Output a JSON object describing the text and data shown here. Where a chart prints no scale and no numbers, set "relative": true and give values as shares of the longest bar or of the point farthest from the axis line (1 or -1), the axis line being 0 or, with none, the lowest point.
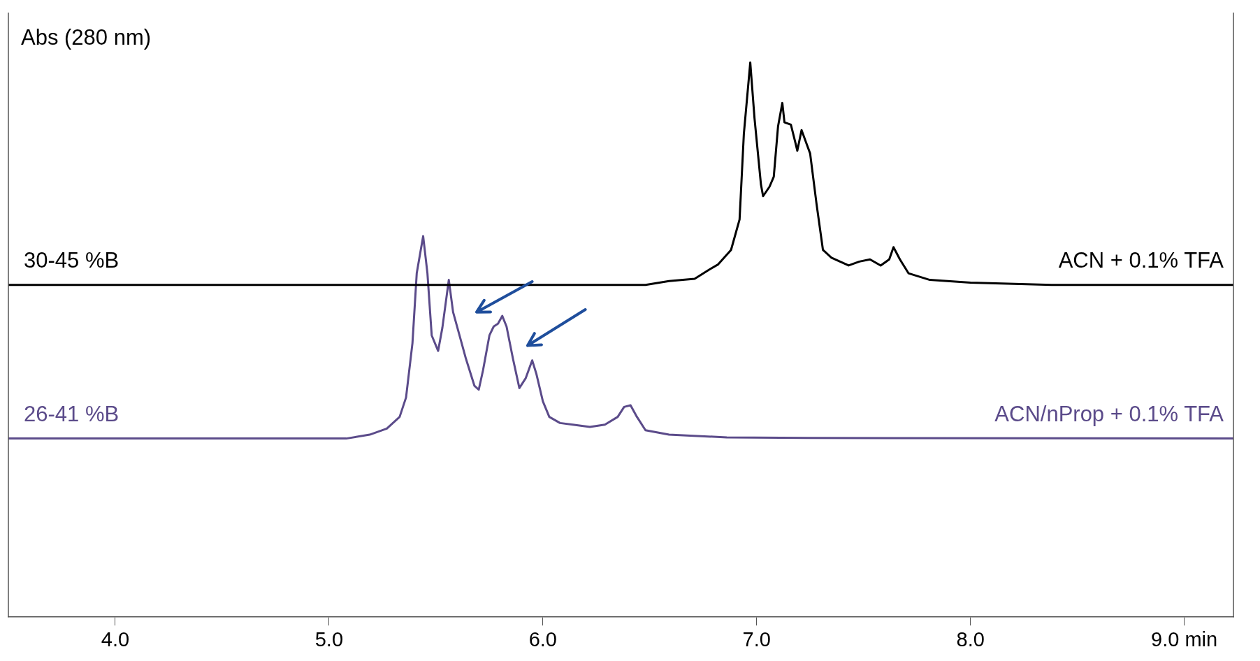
{
  "chart_data": {
    "type": "line",
    "relative": true,
    "ylabel": "Abs (280 nm)",
    "legend": false,
    "grid": false,
    "marker": "none",
    "line_style": "solid",
    "xlim": [
      3.5,
      9.23
    ],
    "xticks": [
      {
        "value": 4,
        "label": "4.0"
      },
      {
        "value": 5,
        "label": "5.0"
      },
      {
        "value": 6,
        "label": "6.0"
      },
      {
        "value": 7,
        "label": "7.0"
      },
      {
        "value": 8,
        "label": "8.0"
      },
      {
        "value": 9,
        "label": "9.0 min"
      }
    ],
    "annotations": [
      {
        "text": "30-45 %B",
        "x": 3.5,
        "y": 0.599
      },
      {
        "text": "26-41 %B",
        "x": 3.5,
        "y": 0.322
      }
    ],
    "series": [
      {
        "name": "ACN + 0.1% TFA",
        "color": "#000000",
        "x": [
          3.5,
          6.48,
          6.59,
          6.71,
          6.78,
          6.82,
          6.88,
          6.92,
          6.94,
          6.97,
          6.99,
          7.02,
          7.03,
          7.06,
          7.08,
          7.1,
          7.12,
          7.13,
          7.16,
          7.18,
          7.19,
          7.21,
          7.23,
          7.25,
          7.28,
          7.31,
          7.35,
          7.43,
          7.48,
          7.53,
          7.58,
          7.62,
          7.64,
          7.67,
          7.71,
          7.81,
          8.0,
          8.38,
          9.23
        ],
        "values": [
          0.599,
          0.599,
          0.606,
          0.61,
          0.627,
          0.636,
          0.662,
          0.717,
          0.871,
          1,
          0.899,
          0.78,
          0.759,
          0.776,
          0.794,
          0.885,
          0.927,
          0.892,
          0.888,
          0.857,
          0.841,
          0.878,
          0.857,
          0.836,
          0.745,
          0.662,
          0.648,
          0.634,
          0.641,
          0.645,
          0.634,
          0.645,
          0.667,
          0.645,
          0.62,
          0.608,
          0.603,
          0.599,
          0.599
        ]
      },
      {
        "name": "ACN/nProp + 0.1% TFA",
        "color": "#5b4b8a",
        "x": [
          3.5,
          5.08,
          5.19,
          5.27,
          5.33,
          5.36,
          5.39,
          5.41,
          5.44,
          5.46,
          5.48,
          5.51,
          5.53,
          5.56,
          5.58,
          5.61,
          5.64,
          5.68,
          5.7,
          5.72,
          5.75,
          5.77,
          5.79,
          5.81,
          5.83,
          5.86,
          5.89,
          5.92,
          5.95,
          5.97,
          6.0,
          6.03,
          6.08,
          6.14,
          6.22,
          6.29,
          6.35,
          6.38,
          6.41,
          6.44,
          6.48,
          6.59,
          6.86,
          7.24,
          9.23
        ],
        "values": [
          0.322,
          0.322,
          0.329,
          0.34,
          0.361,
          0.396,
          0.494,
          0.62,
          0.687,
          0.62,
          0.508,
          0.48,
          0.522,
          0.608,
          0.55,
          0.508,
          0.466,
          0.417,
          0.41,
          0.445,
          0.508,
          0.524,
          0.529,
          0.543,
          0.524,
          0.466,
          0.413,
          0.431,
          0.463,
          0.438,
          0.389,
          0.361,
          0.35,
          0.347,
          0.343,
          0.347,
          0.361,
          0.379,
          0.382,
          0.361,
          0.337,
          0.329,
          0.324,
          0.323,
          0.322
        ]
      }
    ]
  }
}
